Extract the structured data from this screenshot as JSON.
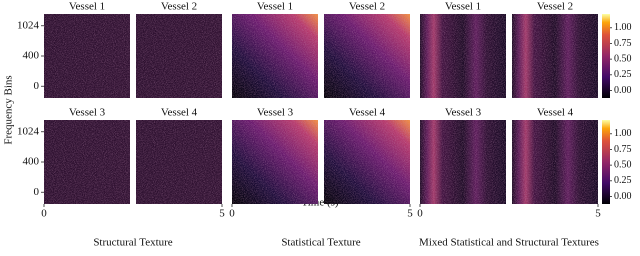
{
  "y_label": "Frequency Bins",
  "x_label": "Time (s)",
  "yticks": [
    "1024",
    "400",
    "0"
  ],
  "xlim": [
    0,
    5
  ],
  "xticks": [
    0,
    5
  ],
  "colorbar": {
    "lim": [
      -0.12,
      1.22
    ],
    "ticks": [
      {
        "value": 0,
        "label": "0.00"
      },
      {
        "value": 0.25,
        "label": "0.25"
      },
      {
        "value": 0.5,
        "label": "0.50"
      },
      {
        "value": 0.75,
        "label": "0.75"
      },
      {
        "value": 1,
        "label": "1.00"
      }
    ]
  },
  "groups": [
    {
      "caption": "Structural Texture",
      "titles": [
        "Vessel 1",
        "Vessel 2",
        "Vessel 3",
        "Vessel 4"
      ]
    },
    {
      "caption": "Statistical Texture",
      "titles": [
        "Vessel 1",
        "Vessel 2",
        "Vessel 3",
        "Vessel 4"
      ]
    },
    {
      "caption": "Mixed Statistical and Structural Textures",
      "titles": [
        "Vessel 1",
        "Vessel 2",
        "Vessel 3",
        "Vessel 4"
      ]
    }
  ]
}
